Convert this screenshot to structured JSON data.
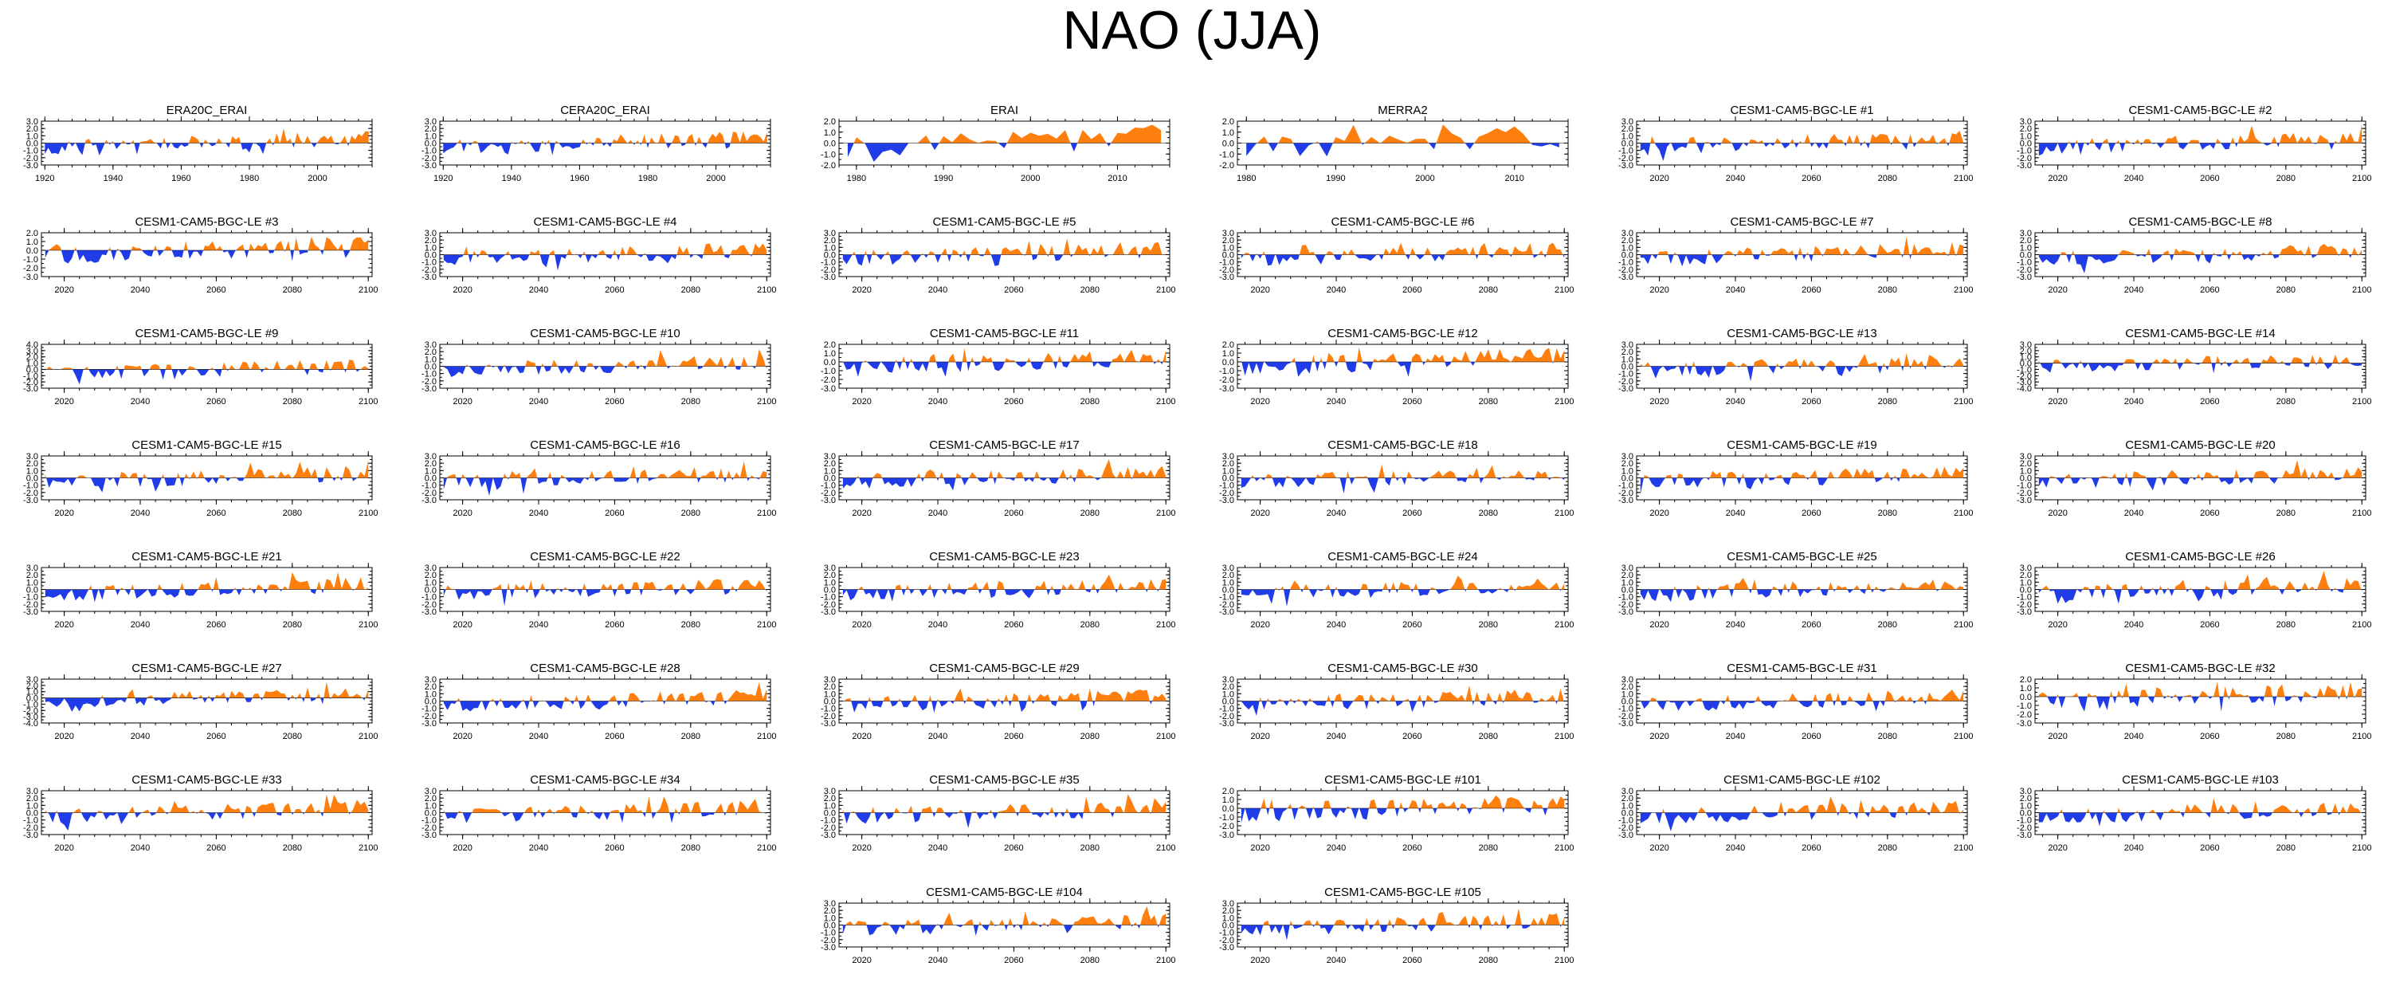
{
  "title": "NAO (JJA)",
  "chart_data": {
    "type": "area",
    "layout": "8 rows x 6 columns small-multiple grid",
    "colors": {
      "positive": "#ff7f0e",
      "negative": "#1f3ce8",
      "axis": "#000000"
    },
    "panels": [
      {
        "title": "ERA20C_ERAI",
        "xlim": [
          1919,
          2016
        ],
        "xticks": [
          1920,
          1940,
          1960,
          1980,
          2000
        ],
        "ylim": [
          -3,
          3
        ],
        "yticks": [
          3.0,
          2.0,
          1.0,
          0.0,
          -1.0,
          -2.0,
          -3.0
        ]
      },
      {
        "title": "CERA20C_ERAI",
        "xlim": [
          1919,
          2016
        ],
        "xticks": [
          1920,
          1940,
          1960,
          1980,
          2000
        ],
        "ylim": [
          -3,
          3
        ],
        "yticks": [
          3.0,
          2.0,
          1.0,
          0.0,
          -1.0,
          -2.0,
          -3.0
        ]
      },
      {
        "title": "ERAI",
        "xlim": [
          1978,
          2016
        ],
        "xticks": [
          1980,
          1990,
          2000,
          2010
        ],
        "ylim": [
          -2,
          2
        ],
        "yticks": [
          2.0,
          1.0,
          0.0,
          -1.0,
          -2.0
        ]
      },
      {
        "title": "MERRA2",
        "xlim": [
          1979,
          2016
        ],
        "xticks": [
          1980,
          1990,
          2000,
          2010
        ],
        "ylim": [
          -2,
          2
        ],
        "yticks": [
          2.0,
          1.0,
          0.0,
          -1.0,
          -2.0
        ]
      },
      {
        "title": "CESM1-CAM5-BGC-LE #1",
        "xlim": [
          2014,
          2101
        ],
        "xticks": [
          2020,
          2040,
          2060,
          2080,
          2100
        ],
        "ylim": [
          -3,
          3
        ],
        "yticks": [
          3.0,
          2.0,
          1.0,
          0.0,
          -1.0,
          -2.0,
          -3.0
        ]
      },
      {
        "title": "CESM1-CAM5-BGC-LE #2",
        "xlim": [
          2014,
          2101
        ],
        "xticks": [
          2020,
          2040,
          2060,
          2080,
          2100
        ],
        "ylim": [
          -3,
          3
        ],
        "yticks": [
          3.0,
          2.0,
          1.0,
          0.0,
          -1.0,
          -2.0,
          -3.0
        ]
      },
      {
        "title": "CESM1-CAM5-BGC-LE #3",
        "xlim": [
          2014,
          2101
        ],
        "xticks": [
          2020,
          2040,
          2060,
          2080,
          2100
        ],
        "ylim": [
          -3,
          2
        ],
        "yticks": [
          2.0,
          1.0,
          0.0,
          -1.0,
          -2.0,
          -3.0
        ]
      },
      {
        "title": "CESM1-CAM5-BGC-LE #4",
        "xlim": [
          2014,
          2101
        ],
        "xticks": [
          2020,
          2040,
          2060,
          2080,
          2100
        ],
        "ylim": [
          -3,
          3
        ],
        "yticks": [
          3.0,
          2.0,
          1.0,
          0.0,
          -1.0,
          -2.0,
          -3.0
        ]
      },
      {
        "title": "CESM1-CAM5-BGC-LE #5",
        "xlim": [
          2014,
          2101
        ],
        "xticks": [
          2020,
          2040,
          2060,
          2080,
          2100
        ],
        "ylim": [
          -3,
          3
        ],
        "yticks": [
          3.0,
          2.0,
          1.0,
          0.0,
          -1.0,
          -2.0,
          -3.0
        ]
      },
      {
        "title": "CESM1-CAM5-BGC-LE #6",
        "xlim": [
          2014,
          2101
        ],
        "xticks": [
          2020,
          2040,
          2060,
          2080,
          2100
        ],
        "ylim": [
          -3,
          3
        ],
        "yticks": [
          3.0,
          2.0,
          1.0,
          0.0,
          -1.0,
          -2.0,
          -3.0
        ]
      },
      {
        "title": "CESM1-CAM5-BGC-LE #7",
        "xlim": [
          2014,
          2101
        ],
        "xticks": [
          2020,
          2040,
          2060,
          2080,
          2100
        ],
        "ylim": [
          -3,
          3
        ],
        "yticks": [
          3.0,
          2.0,
          1.0,
          0.0,
          -1.0,
          -2.0,
          -3.0
        ]
      },
      {
        "title": "CESM1-CAM5-BGC-LE #8",
        "xlim": [
          2014,
          2101
        ],
        "xticks": [
          2020,
          2040,
          2060,
          2080,
          2100
        ],
        "ylim": [
          -3,
          3
        ],
        "yticks": [
          3.0,
          2.0,
          1.0,
          0.0,
          -1.0,
          -2.0,
          -3.0
        ]
      },
      {
        "title": "CESM1-CAM5-BGC-LE #9",
        "xlim": [
          2014,
          2101
        ],
        "xticks": [
          2020,
          2040,
          2060,
          2080,
          2100
        ],
        "ylim": [
          -3,
          4
        ],
        "yticks": [
          4.0,
          3.0,
          2.0,
          1.0,
          0.0,
          -1.0,
          -2.0,
          -3.0
        ]
      },
      {
        "title": "CESM1-CAM5-BGC-LE #10",
        "xlim": [
          2014,
          2101
        ],
        "xticks": [
          2020,
          2040,
          2060,
          2080,
          2100
        ],
        "ylim": [
          -3,
          3
        ],
        "yticks": [
          3.0,
          2.0,
          1.0,
          0.0,
          -1.0,
          -2.0,
          -3.0
        ]
      },
      {
        "title": "CESM1-CAM5-BGC-LE #11",
        "xlim": [
          2014,
          2101
        ],
        "xticks": [
          2020,
          2040,
          2060,
          2080,
          2100
        ],
        "ylim": [
          -3,
          2
        ],
        "yticks": [
          2.0,
          1.0,
          0.0,
          -1.0,
          -2.0,
          -3.0
        ]
      },
      {
        "title": "CESM1-CAM5-BGC-LE #12",
        "xlim": [
          2014,
          2101
        ],
        "xticks": [
          2020,
          2040,
          2060,
          2080,
          2100
        ],
        "ylim": [
          -3,
          2
        ],
        "yticks": [
          2.0,
          1.0,
          0.0,
          -1.0,
          -2.0,
          -3.0
        ]
      },
      {
        "title": "CESM1-CAM5-BGC-LE #13",
        "xlim": [
          2014,
          2101
        ],
        "xticks": [
          2020,
          2040,
          2060,
          2080,
          2100
        ],
        "ylim": [
          -3,
          3
        ],
        "yticks": [
          3.0,
          2.0,
          1.0,
          0.0,
          -1.0,
          -2.0,
          -3.0
        ]
      },
      {
        "title": "CESM1-CAM5-BGC-LE #14",
        "xlim": [
          2014,
          2101
        ],
        "xticks": [
          2020,
          2040,
          2060,
          2080,
          2100
        ],
        "ylim": [
          -4,
          3
        ],
        "yticks": [
          3.0,
          2.0,
          1.0,
          0.0,
          -1.0,
          -2.0,
          -3.0,
          -4.0
        ]
      },
      {
        "title": "CESM1-CAM5-BGC-LE #15",
        "xlim": [
          2014,
          2101
        ],
        "xticks": [
          2020,
          2040,
          2060,
          2080,
          2100
        ],
        "ylim": [
          -3,
          3
        ],
        "yticks": [
          3.0,
          2.0,
          1.0,
          0.0,
          -1.0,
          -2.0,
          -3.0
        ]
      },
      {
        "title": "CESM1-CAM5-BGC-LE #16",
        "xlim": [
          2014,
          2101
        ],
        "xticks": [
          2020,
          2040,
          2060,
          2080,
          2100
        ],
        "ylim": [
          -3,
          3
        ],
        "yticks": [
          3.0,
          2.0,
          1.0,
          0.0,
          -1.0,
          -2.0,
          -3.0
        ]
      },
      {
        "title": "CESM1-CAM5-BGC-LE #17",
        "xlim": [
          2014,
          2101
        ],
        "xticks": [
          2020,
          2040,
          2060,
          2080,
          2100
        ],
        "ylim": [
          -3,
          3
        ],
        "yticks": [
          3.0,
          2.0,
          1.0,
          0.0,
          -1.0,
          -2.0,
          -3.0
        ]
      },
      {
        "title": "CESM1-CAM5-BGC-LE #18",
        "xlim": [
          2014,
          2101
        ],
        "xticks": [
          2020,
          2040,
          2060,
          2080,
          2100
        ],
        "ylim": [
          -3,
          3
        ],
        "yticks": [
          3.0,
          2.0,
          1.0,
          0.0,
          -1.0,
          -2.0,
          -3.0
        ]
      },
      {
        "title": "CESM1-CAM5-BGC-LE #19",
        "xlim": [
          2014,
          2101
        ],
        "xticks": [
          2020,
          2040,
          2060,
          2080,
          2100
        ],
        "ylim": [
          -3,
          3
        ],
        "yticks": [
          3.0,
          2.0,
          1.0,
          0.0,
          -1.0,
          -2.0,
          -3.0
        ]
      },
      {
        "title": "CESM1-CAM5-BGC-LE #20",
        "xlim": [
          2014,
          2101
        ],
        "xticks": [
          2020,
          2040,
          2060,
          2080,
          2100
        ],
        "ylim": [
          -3,
          3
        ],
        "yticks": [
          3.0,
          2.0,
          1.0,
          0.0,
          -1.0,
          -2.0,
          -3.0
        ]
      },
      {
        "title": "CESM1-CAM5-BGC-LE #21",
        "xlim": [
          2014,
          2101
        ],
        "xticks": [
          2020,
          2040,
          2060,
          2080,
          2100
        ],
        "ylim": [
          -3,
          3
        ],
        "yticks": [
          3.0,
          2.0,
          1.0,
          0.0,
          -1.0,
          -2.0,
          -3.0
        ]
      },
      {
        "title": "CESM1-CAM5-BGC-LE #22",
        "xlim": [
          2014,
          2101
        ],
        "xticks": [
          2020,
          2040,
          2060,
          2080,
          2100
        ],
        "ylim": [
          -3,
          3
        ],
        "yticks": [
          3.0,
          2.0,
          1.0,
          0.0,
          -1.0,
          -2.0,
          -3.0
        ]
      },
      {
        "title": "CESM1-CAM5-BGC-LE #23",
        "xlim": [
          2014,
          2101
        ],
        "xticks": [
          2020,
          2040,
          2060,
          2080,
          2100
        ],
        "ylim": [
          -3,
          3
        ],
        "yticks": [
          3.0,
          2.0,
          1.0,
          0.0,
          -1.0,
          -2.0,
          -3.0
        ]
      },
      {
        "title": "CESM1-CAM5-BGC-LE #24",
        "xlim": [
          2014,
          2101
        ],
        "xticks": [
          2020,
          2040,
          2060,
          2080,
          2100
        ],
        "ylim": [
          -3,
          3
        ],
        "yticks": [
          3.0,
          2.0,
          1.0,
          0.0,
          -1.0,
          -2.0,
          -3.0
        ]
      },
      {
        "title": "CESM1-CAM5-BGC-LE #25",
        "xlim": [
          2014,
          2101
        ],
        "xticks": [
          2020,
          2040,
          2060,
          2080,
          2100
        ],
        "ylim": [
          -3,
          3
        ],
        "yticks": [
          3.0,
          2.0,
          1.0,
          0.0,
          -1.0,
          -2.0,
          -3.0
        ]
      },
      {
        "title": "CESM1-CAM5-BGC-LE #26",
        "xlim": [
          2014,
          2101
        ],
        "xticks": [
          2020,
          2040,
          2060,
          2080,
          2100
        ],
        "ylim": [
          -3,
          3
        ],
        "yticks": [
          3.0,
          2.0,
          1.0,
          0.0,
          -1.0,
          -2.0,
          -3.0
        ]
      },
      {
        "title": "CESM1-CAM5-BGC-LE #27",
        "xlim": [
          2014,
          2101
        ],
        "xticks": [
          2020,
          2040,
          2060,
          2080,
          2100
        ],
        "ylim": [
          -4,
          3
        ],
        "yticks": [
          3.0,
          2.0,
          1.0,
          0.0,
          -1.0,
          -2.0,
          -3.0,
          -4.0
        ]
      },
      {
        "title": "CESM1-CAM5-BGC-LE #28",
        "xlim": [
          2014,
          2101
        ],
        "xticks": [
          2020,
          2040,
          2060,
          2080,
          2100
        ],
        "ylim": [
          -3,
          3
        ],
        "yticks": [
          3.0,
          2.0,
          1.0,
          0.0,
          -1.0,
          -2.0,
          -3.0
        ]
      },
      {
        "title": "CESM1-CAM5-BGC-LE #29",
        "xlim": [
          2014,
          2101
        ],
        "xticks": [
          2020,
          2040,
          2060,
          2080,
          2100
        ],
        "ylim": [
          -3,
          3
        ],
        "yticks": [
          3.0,
          2.0,
          1.0,
          0.0,
          -1.0,
          -2.0,
          -3.0
        ]
      },
      {
        "title": "CESM1-CAM5-BGC-LE #30",
        "xlim": [
          2014,
          2101
        ],
        "xticks": [
          2020,
          2040,
          2060,
          2080,
          2100
        ],
        "ylim": [
          -3,
          3
        ],
        "yticks": [
          3.0,
          2.0,
          1.0,
          0.0,
          -1.0,
          -2.0,
          -3.0
        ]
      },
      {
        "title": "CESM1-CAM5-BGC-LE #31",
        "xlim": [
          2014,
          2101
        ],
        "xticks": [
          2020,
          2040,
          2060,
          2080,
          2100
        ],
        "ylim": [
          -3,
          3
        ],
        "yticks": [
          3.0,
          2.0,
          1.0,
          0.0,
          -1.0,
          -2.0,
          -3.0
        ]
      },
      {
        "title": "CESM1-CAM5-BGC-LE #32",
        "xlim": [
          2014,
          2101
        ],
        "xticks": [
          2020,
          2040,
          2060,
          2080,
          2100
        ],
        "ylim": [
          -3,
          2
        ],
        "yticks": [
          2.0,
          1.0,
          0.0,
          -1.0,
          -2.0,
          -3.0
        ]
      },
      {
        "title": "CESM1-CAM5-BGC-LE #33",
        "xlim": [
          2014,
          2101
        ],
        "xticks": [
          2020,
          2040,
          2060,
          2080,
          2100
        ],
        "ylim": [
          -3,
          3
        ],
        "yticks": [
          3.0,
          2.0,
          1.0,
          0.0,
          -1.0,
          -2.0,
          -3.0
        ]
      },
      {
        "title": "CESM1-CAM5-BGC-LE #34",
        "xlim": [
          2014,
          2101
        ],
        "xticks": [
          2020,
          2040,
          2060,
          2080,
          2100
        ],
        "ylim": [
          -3,
          3
        ],
        "yticks": [
          3.0,
          2.0,
          1.0,
          0.0,
          -1.0,
          -2.0,
          -3.0
        ]
      },
      {
        "title": "CESM1-CAM5-BGC-LE #35",
        "xlim": [
          2014,
          2101
        ],
        "xticks": [
          2020,
          2040,
          2060,
          2080,
          2100
        ],
        "ylim": [
          -3,
          3
        ],
        "yticks": [
          3.0,
          2.0,
          1.0,
          0.0,
          -1.0,
          -2.0,
          -3.0
        ]
      },
      {
        "title": "CESM1-CAM5-BGC-LE #101",
        "xlim": [
          2014,
          2101
        ],
        "xticks": [
          2020,
          2040,
          2060,
          2080,
          2100
        ],
        "ylim": [
          -3,
          2
        ],
        "yticks": [
          2.0,
          1.0,
          0.0,
          -1.0,
          -2.0,
          -3.0
        ]
      },
      {
        "title": "CESM1-CAM5-BGC-LE #102",
        "xlim": [
          2014,
          2101
        ],
        "xticks": [
          2020,
          2040,
          2060,
          2080,
          2100
        ],
        "ylim": [
          -3,
          3
        ],
        "yticks": [
          3.0,
          2.0,
          1.0,
          0.0,
          -1.0,
          -2.0,
          -3.0
        ]
      },
      {
        "title": "CESM1-CAM5-BGC-LE #103",
        "xlim": [
          2014,
          2101
        ],
        "xticks": [
          2020,
          2040,
          2060,
          2080,
          2100
        ],
        "ylim": [
          -3,
          3
        ],
        "yticks": [
          3.0,
          2.0,
          1.0,
          0.0,
          -1.0,
          -2.0,
          -3.0
        ]
      },
      {
        "title": "CESM1-CAM5-BGC-LE #104",
        "xlim": [
          2014,
          2101
        ],
        "xticks": [
          2020,
          2040,
          2060,
          2080,
          2100
        ],
        "ylim": [
          -3,
          3
        ],
        "yticks": [
          3.0,
          2.0,
          1.0,
          0.0,
          -1.0,
          -2.0,
          -3.0
        ]
      },
      {
        "title": "CESM1-CAM5-BGC-LE #105",
        "xlim": [
          2014,
          2101
        ],
        "xticks": [
          2020,
          2040,
          2060,
          2080,
          2100
        ],
        "ylim": [
          -3,
          3
        ],
        "yticks": [
          3.0,
          2.0,
          1.0,
          0.0,
          -1.0,
          -2.0,
          -3.0
        ]
      }
    ]
  }
}
